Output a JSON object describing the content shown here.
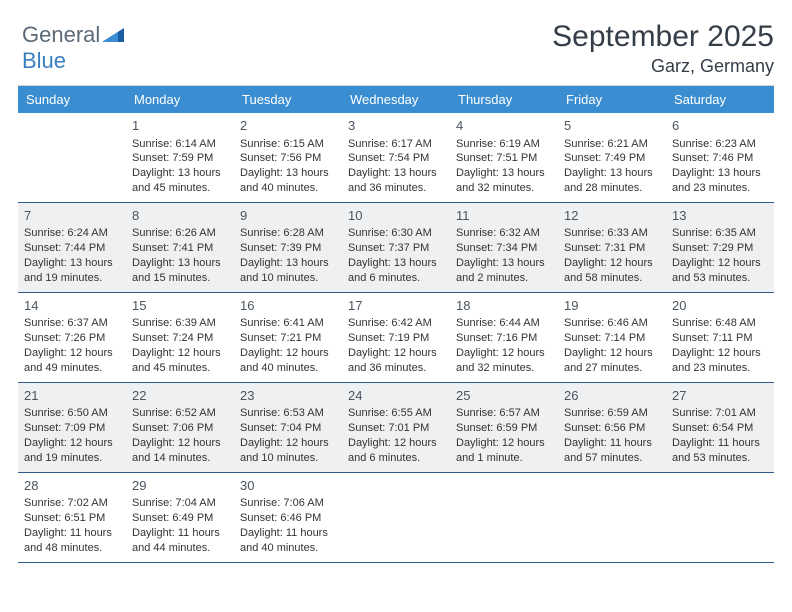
{
  "logo": {
    "word1": "General",
    "word2": "Blue"
  },
  "header": {
    "title": "September 2025",
    "location": "Garz, Germany"
  },
  "colors": {
    "header_bg": "#3a8dd0",
    "header_text": "#ffffff",
    "row_border": "#2e5b88",
    "alt_bg": "#eef0f2",
    "text": "#333333",
    "logo_gray": "#5d6a78",
    "logo_blue": "#3a7fbf"
  },
  "days_of_week": [
    "Sunday",
    "Monday",
    "Tuesday",
    "Wednesday",
    "Thursday",
    "Friday",
    "Saturday"
  ],
  "cells": [
    {
      "day": "",
      "alt": false
    },
    {
      "day": "1",
      "alt": false,
      "sunrise": "Sunrise: 6:14 AM",
      "sunset": "Sunset: 7:59 PM",
      "daylight": "Daylight: 13 hours and 45 minutes."
    },
    {
      "day": "2",
      "alt": false,
      "sunrise": "Sunrise: 6:15 AM",
      "sunset": "Sunset: 7:56 PM",
      "daylight": "Daylight: 13 hours and 40 minutes."
    },
    {
      "day": "3",
      "alt": false,
      "sunrise": "Sunrise: 6:17 AM",
      "sunset": "Sunset: 7:54 PM",
      "daylight": "Daylight: 13 hours and 36 minutes."
    },
    {
      "day": "4",
      "alt": false,
      "sunrise": "Sunrise: 6:19 AM",
      "sunset": "Sunset: 7:51 PM",
      "daylight": "Daylight: 13 hours and 32 minutes."
    },
    {
      "day": "5",
      "alt": false,
      "sunrise": "Sunrise: 6:21 AM",
      "sunset": "Sunset: 7:49 PM",
      "daylight": "Daylight: 13 hours and 28 minutes."
    },
    {
      "day": "6",
      "alt": false,
      "sunrise": "Sunrise: 6:23 AM",
      "sunset": "Sunset: 7:46 PM",
      "daylight": "Daylight: 13 hours and 23 minutes."
    },
    {
      "day": "7",
      "alt": true,
      "sunrise": "Sunrise: 6:24 AM",
      "sunset": "Sunset: 7:44 PM",
      "daylight": "Daylight: 13 hours and 19 minutes."
    },
    {
      "day": "8",
      "alt": true,
      "sunrise": "Sunrise: 6:26 AM",
      "sunset": "Sunset: 7:41 PM",
      "daylight": "Daylight: 13 hours and 15 minutes."
    },
    {
      "day": "9",
      "alt": true,
      "sunrise": "Sunrise: 6:28 AM",
      "sunset": "Sunset: 7:39 PM",
      "daylight": "Daylight: 13 hours and 10 minutes."
    },
    {
      "day": "10",
      "alt": true,
      "sunrise": "Sunrise: 6:30 AM",
      "sunset": "Sunset: 7:37 PM",
      "daylight": "Daylight: 13 hours and 6 minutes."
    },
    {
      "day": "11",
      "alt": true,
      "sunrise": "Sunrise: 6:32 AM",
      "sunset": "Sunset: 7:34 PM",
      "daylight": "Daylight: 13 hours and 2 minutes."
    },
    {
      "day": "12",
      "alt": true,
      "sunrise": "Sunrise: 6:33 AM",
      "sunset": "Sunset: 7:31 PM",
      "daylight": "Daylight: 12 hours and 58 minutes."
    },
    {
      "day": "13",
      "alt": true,
      "sunrise": "Sunrise: 6:35 AM",
      "sunset": "Sunset: 7:29 PM",
      "daylight": "Daylight: 12 hours and 53 minutes."
    },
    {
      "day": "14",
      "alt": false,
      "sunrise": "Sunrise: 6:37 AM",
      "sunset": "Sunset: 7:26 PM",
      "daylight": "Daylight: 12 hours and 49 minutes."
    },
    {
      "day": "15",
      "alt": false,
      "sunrise": "Sunrise: 6:39 AM",
      "sunset": "Sunset: 7:24 PM",
      "daylight": "Daylight: 12 hours and 45 minutes."
    },
    {
      "day": "16",
      "alt": false,
      "sunrise": "Sunrise: 6:41 AM",
      "sunset": "Sunset: 7:21 PM",
      "daylight": "Daylight: 12 hours and 40 minutes."
    },
    {
      "day": "17",
      "alt": false,
      "sunrise": "Sunrise: 6:42 AM",
      "sunset": "Sunset: 7:19 PM",
      "daylight": "Daylight: 12 hours and 36 minutes."
    },
    {
      "day": "18",
      "alt": false,
      "sunrise": "Sunrise: 6:44 AM",
      "sunset": "Sunset: 7:16 PM",
      "daylight": "Daylight: 12 hours and 32 minutes."
    },
    {
      "day": "19",
      "alt": false,
      "sunrise": "Sunrise: 6:46 AM",
      "sunset": "Sunset: 7:14 PM",
      "daylight": "Daylight: 12 hours and 27 minutes."
    },
    {
      "day": "20",
      "alt": false,
      "sunrise": "Sunrise: 6:48 AM",
      "sunset": "Sunset: 7:11 PM",
      "daylight": "Daylight: 12 hours and 23 minutes."
    },
    {
      "day": "21",
      "alt": true,
      "sunrise": "Sunrise: 6:50 AM",
      "sunset": "Sunset: 7:09 PM",
      "daylight": "Daylight: 12 hours and 19 minutes."
    },
    {
      "day": "22",
      "alt": true,
      "sunrise": "Sunrise: 6:52 AM",
      "sunset": "Sunset: 7:06 PM",
      "daylight": "Daylight: 12 hours and 14 minutes."
    },
    {
      "day": "23",
      "alt": true,
      "sunrise": "Sunrise: 6:53 AM",
      "sunset": "Sunset: 7:04 PM",
      "daylight": "Daylight: 12 hours and 10 minutes."
    },
    {
      "day": "24",
      "alt": true,
      "sunrise": "Sunrise: 6:55 AM",
      "sunset": "Sunset: 7:01 PM",
      "daylight": "Daylight: 12 hours and 6 minutes."
    },
    {
      "day": "25",
      "alt": true,
      "sunrise": "Sunrise: 6:57 AM",
      "sunset": "Sunset: 6:59 PM",
      "daylight": "Daylight: 12 hours and 1 minute."
    },
    {
      "day": "26",
      "alt": true,
      "sunrise": "Sunrise: 6:59 AM",
      "sunset": "Sunset: 6:56 PM",
      "daylight": "Daylight: 11 hours and 57 minutes."
    },
    {
      "day": "27",
      "alt": true,
      "sunrise": "Sunrise: 7:01 AM",
      "sunset": "Sunset: 6:54 PM",
      "daylight": "Daylight: 11 hours and 53 minutes."
    },
    {
      "day": "28",
      "alt": false,
      "sunrise": "Sunrise: 7:02 AM",
      "sunset": "Sunset: 6:51 PM",
      "daylight": "Daylight: 11 hours and 48 minutes."
    },
    {
      "day": "29",
      "alt": false,
      "sunrise": "Sunrise: 7:04 AM",
      "sunset": "Sunset: 6:49 PM",
      "daylight": "Daylight: 11 hours and 44 minutes."
    },
    {
      "day": "30",
      "alt": false,
      "sunrise": "Sunrise: 7:06 AM",
      "sunset": "Sunset: 6:46 PM",
      "daylight": "Daylight: 11 hours and 40 minutes."
    },
    {
      "day": "",
      "alt": false
    },
    {
      "day": "",
      "alt": false
    },
    {
      "day": "",
      "alt": false
    },
    {
      "day": "",
      "alt": false
    }
  ]
}
